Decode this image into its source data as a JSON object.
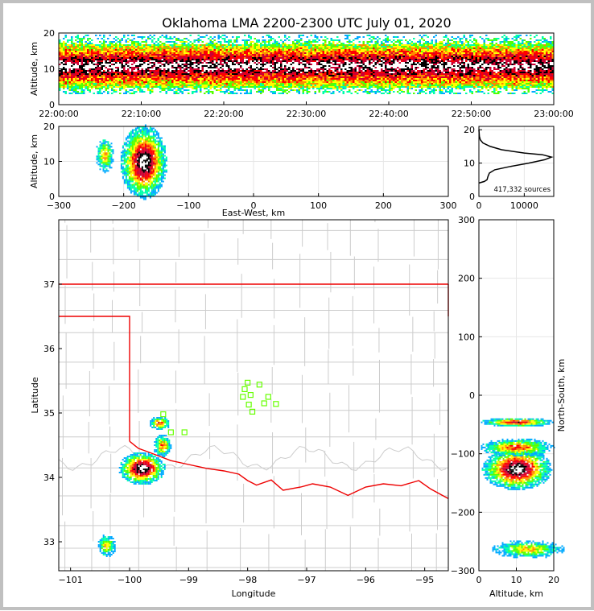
{
  "title": "Oklahoma LMA 2200-2300 UTC July 01, 2020",
  "colors": {
    "density_ramp": [
      "#2a00ff",
      "#00aaff",
      "#00ffaa",
      "#55ff00",
      "#ffff00",
      "#ff8800",
      "#ff0000",
      "#cc0033",
      "#000000",
      "#ffffff"
    ],
    "border_red": "#ee0000",
    "county_lines": "#cccccc",
    "station_markers": "#66ff00",
    "grid": "#e6e6e6"
  },
  "chart_data": [
    {
      "id": "time-altitude",
      "type": "heatmap",
      "ylabel": "Altitude, km",
      "x_tick_labels": [
        "22:00:00",
        "22:10:00",
        "22:20:00",
        "22:30:00",
        "22:40:00",
        "22:50:00",
        "23:00:00"
      ],
      "y_ticks": [
        0,
        10,
        20
      ],
      "ylim": [
        0,
        20
      ],
      "band": {
        "core_min_km": 8,
        "core_max_km": 14,
        "outer_min_km": 3,
        "outer_max_km": 20
      }
    },
    {
      "id": "eastwest-altitude",
      "type": "heatmap",
      "xlabel": "East-West, km",
      "ylabel": "Altitude, km",
      "xlim": [
        -300,
        300
      ],
      "ylim": [
        0,
        20
      ],
      "x_ticks": [
        -300,
        -200,
        -100,
        0,
        100,
        200,
        300
      ],
      "y_ticks": [
        0,
        10,
        20
      ],
      "cells": [
        {
          "x_km": -170,
          "alt_km": 10,
          "intensity": 1.0
        },
        {
          "x_km": -230,
          "alt_km": 12,
          "intensity": 0.55
        }
      ]
    },
    {
      "id": "altitude-histogram",
      "type": "line",
      "xlim": [
        0,
        16500
      ],
      "ylim": [
        0,
        21
      ],
      "x_ticks": [
        0,
        10000
      ],
      "y_ticks": [
        0,
        10,
        20
      ],
      "annotation": "417,332 sources",
      "points": [
        [
          0,
          4
        ],
        [
          1200,
          4.5
        ],
        [
          1800,
          5
        ],
        [
          2000,
          6
        ],
        [
          2300,
          7
        ],
        [
          3500,
          8
        ],
        [
          7000,
          9
        ],
        [
          11000,
          10
        ],
        [
          14500,
          11
        ],
        [
          16000,
          11.8
        ],
        [
          14000,
          12.5
        ],
        [
          10000,
          13
        ],
        [
          5000,
          14
        ],
        [
          2500,
          15
        ],
        [
          900,
          16
        ],
        [
          300,
          17
        ],
        [
          100,
          18
        ],
        [
          0,
          20
        ]
      ]
    },
    {
      "id": "plan-view",
      "type": "heatmap",
      "xlabel": "Longitude",
      "ylabel": "Latitude",
      "xlim": [
        -101.2,
        -94.6
      ],
      "ylim": [
        32.55,
        38.0
      ],
      "x_ticks": [
        -101,
        -100,
        -99,
        -98,
        -97,
        -96,
        -95
      ],
      "y_ticks": [
        33,
        34,
        35,
        36,
        37
      ],
      "cells": [
        {
          "lon": -99.8,
          "lat": 34.15,
          "intensity": 1.0
        },
        {
          "lon": -99.5,
          "lat": 34.85,
          "intensity": 0.7
        },
        {
          "lon": -99.45,
          "lat": 34.5,
          "intensity": 0.6
        },
        {
          "lon": -100.4,
          "lat": 32.95,
          "intensity": 0.5
        }
      ],
      "stations": [
        {
          "lon": -98.0,
          "lat": 35.47
        },
        {
          "lon": -97.8,
          "lat": 35.44
        },
        {
          "lon": -98.05,
          "lat": 35.37
        },
        {
          "lon": -97.95,
          "lat": 35.28
        },
        {
          "lon": -98.08,
          "lat": 35.25
        },
        {
          "lon": -97.65,
          "lat": 35.25
        },
        {
          "lon": -97.72,
          "lat": 35.15
        },
        {
          "lon": -97.52,
          "lat": 35.14
        },
        {
          "lon": -97.98,
          "lat": 35.13
        },
        {
          "lon": -97.92,
          "lat": 35.02
        },
        {
          "lon": -99.43,
          "lat": 34.98
        },
        {
          "lon": -99.3,
          "lat": 34.7
        },
        {
          "lon": -99.07,
          "lat": 34.7
        }
      ]
    },
    {
      "id": "altitude-northsouth",
      "type": "heatmap",
      "xlabel": "Altitude, km",
      "ylabel": "North-South, km",
      "xlim": [
        0,
        20
      ],
      "ylim": [
        -300,
        300
      ],
      "x_ticks": [
        0,
        10,
        20
      ],
      "y_ticks": [
        -300,
        -200,
        -100,
        0,
        100,
        200,
        300
      ],
      "cells": [
        {
          "alt_km": 10,
          "ns_km": -125,
          "intensity": 1.0
        },
        {
          "alt_km": 10,
          "ns_km": -45,
          "intensity": 0.75
        },
        {
          "alt_km": 10,
          "ns_km": -88,
          "intensity": 0.65
        },
        {
          "alt_km": 13,
          "ns_km": -262,
          "intensity": 0.5
        }
      ]
    }
  ]
}
